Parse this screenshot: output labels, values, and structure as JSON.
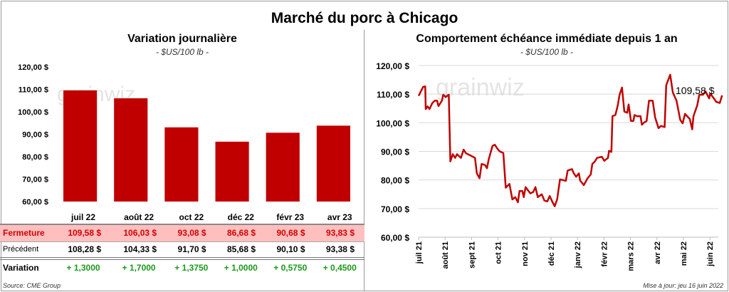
{
  "title": "Marché du porc à Chicago",
  "left": {
    "title": "Variation journalière",
    "unit": "- $US/100 lb -"
  },
  "right": {
    "title": "Comportement  échéance immédiate depuis 1 an",
    "unit": "- $US/100 lb -",
    "last_label": "109,58 $"
  },
  "watermark": "grainwiz",
  "table": {
    "columns": [
      "juil 22",
      "août 22",
      "oct 22",
      "déc 22",
      "févr 23",
      "avr 23"
    ],
    "rows": [
      {
        "label": "Fermeture",
        "values": [
          "109,58  $",
          "106,03  $",
          "93,08  $",
          "86,68  $",
          "90,68  $",
          "93,83  $"
        ]
      },
      {
        "label": "Précédent",
        "values": [
          "108,28  $",
          "104,33  $",
          "91,70  $",
          "85,68  $",
          "90,10  $",
          "93,38  $"
        ]
      },
      {
        "label": "Variation",
        "values": [
          "+ 1,3000",
          "+ 1,7000",
          "+ 1,3750",
          "+ 1,0000",
          "+ 0,5750",
          "+ 0,4500"
        ]
      }
    ]
  },
  "source": "Source: CME Group",
  "updated": "Mise à jour: jeu 16 juin 2022",
  "colors": {
    "bar": "#c00000",
    "line": "#c00000",
    "fermeture_bg": "#ffbfbf",
    "up": "#1a9a1a"
  },
  "chart_data": [
    {
      "type": "bar",
      "title": "Variation journalière",
      "categories": [
        "juil 22",
        "août 22",
        "oct 22",
        "déc 22",
        "févr 23",
        "avr 23"
      ],
      "values": [
        109.58,
        106.03,
        93.08,
        86.68,
        90.68,
        93.83
      ],
      "ylim": [
        60,
        120
      ],
      "yticks": [
        "60,00 $",
        "70,00 $",
        "80,00 $",
        "90,00 $",
        "100,00 $",
        "110,00 $",
        "120,00 $"
      ]
    },
    {
      "type": "line",
      "title": "Comportement  échéance immédiate depuis 1 an",
      "ylim": [
        60,
        120
      ],
      "yticks": [
        "60,00 $",
        "70,00 $",
        "80,00 $",
        "90,00 $",
        "100,00 $",
        "110,00 $",
        "120,00 $"
      ],
      "xticks": [
        "juil 21",
        "août 21",
        "sept 21",
        "oct 21",
        "nov 21",
        "déc 21",
        "janv 22",
        "févr 22",
        "mars 22",
        "avr 22",
        "mai 22",
        "juin 22"
      ],
      "x_unit": "months since juil 21",
      "points": [
        [
          0,
          109.4
        ],
        [
          0.17,
          112.5
        ],
        [
          0.25,
          112.7
        ],
        [
          0.27,
          104.8
        ],
        [
          0.34,
          105.7
        ],
        [
          0.41,
          104.8
        ],
        [
          0.52,
          106.9
        ],
        [
          0.61,
          107.7
        ],
        [
          0.7,
          107.7
        ],
        [
          0.75,
          105.8
        ],
        [
          0.88,
          107.7
        ],
        [
          0.93,
          109.8
        ],
        [
          1.02,
          109
        ],
        [
          1.14,
          109.8
        ],
        [
          1.2,
          86.5
        ],
        [
          1.29,
          89
        ],
        [
          1.38,
          87.7
        ],
        [
          1.45,
          89
        ],
        [
          1.6,
          87.7
        ],
        [
          1.7,
          90.6
        ],
        [
          1.79,
          89.3
        ],
        [
          1.97,
          88.5
        ],
        [
          2.13,
          87.7
        ],
        [
          2.2,
          82.3
        ],
        [
          2.3,
          80.6
        ],
        [
          2.38,
          85.6
        ],
        [
          2.51,
          85.2
        ],
        [
          2.58,
          84.1
        ],
        [
          2.65,
          87.3
        ],
        [
          2.79,
          91.9
        ],
        [
          2.88,
          92.3
        ],
        [
          2.97,
          91
        ],
        [
          3.06,
          90
        ],
        [
          3.2,
          89.4
        ],
        [
          3.29,
          77.3
        ],
        [
          3.43,
          78.6
        ],
        [
          3.54,
          73.2
        ],
        [
          3.65,
          74
        ],
        [
          3.75,
          72.2
        ],
        [
          3.81,
          76.1
        ],
        [
          3.92,
          76.1
        ],
        [
          3.97,
          74
        ],
        [
          4.04,
          77.5
        ],
        [
          4.15,
          76.1
        ],
        [
          4.22,
          75.3
        ],
        [
          4.33,
          75.8
        ],
        [
          4.41,
          77.5
        ],
        [
          4.5,
          74
        ],
        [
          4.65,
          75
        ],
        [
          4.75,
          72.8
        ],
        [
          4.86,
          72.5
        ],
        [
          4.95,
          74.4
        ],
        [
          5.06,
          72.2
        ],
        [
          5.14,
          70.8
        ],
        [
          5.23,
          73.2
        ],
        [
          5.34,
          80.2
        ],
        [
          5.43,
          80
        ],
        [
          5.56,
          79.7
        ],
        [
          5.63,
          83.3
        ],
        [
          5.79,
          83.8
        ],
        [
          5.86,
          82.3
        ],
        [
          5.95,
          81.1
        ],
        [
          6.05,
          82.3
        ],
        [
          6.1,
          79.8
        ],
        [
          6.24,
          78.2
        ],
        [
          6.38,
          80.6
        ],
        [
          6.5,
          81.9
        ],
        [
          6.56,
          85.6
        ],
        [
          6.65,
          86.4
        ],
        [
          6.74,
          87.7
        ],
        [
          6.92,
          88.1
        ],
        [
          7.01,
          86.7
        ],
        [
          7.15,
          87.7
        ],
        [
          7.19,
          90.2
        ],
        [
          7.28,
          89.8
        ],
        [
          7.32,
          102.3
        ],
        [
          7.43,
          102.7
        ],
        [
          7.52,
          106
        ],
        [
          7.59,
          109.8
        ],
        [
          7.68,
          112.3
        ],
        [
          7.77,
          103.9
        ],
        [
          7.88,
          103.5
        ],
        [
          7.93,
          106.4
        ],
        [
          8.02,
          100.6
        ],
        [
          8.11,
          100.6
        ],
        [
          8.15,
          102.7
        ],
        [
          8.25,
          102.3
        ],
        [
          8.38,
          102.3
        ],
        [
          8.43,
          99.3
        ],
        [
          8.52,
          100.1
        ],
        [
          8.61,
          100.6
        ],
        [
          8.7,
          107.7
        ],
        [
          8.84,
          107.7
        ],
        [
          8.93,
          101.9
        ],
        [
          9.06,
          98.1
        ],
        [
          9.15,
          98.9
        ],
        [
          9.29,
          98.5
        ],
        [
          9.35,
          113.1
        ],
        [
          9.5,
          116.8
        ],
        [
          9.6,
          110.6
        ],
        [
          9.74,
          107.7
        ],
        [
          9.88,
          101
        ],
        [
          9.97,
          99.8
        ],
        [
          10.06,
          103.1
        ],
        [
          10.24,
          101.3
        ],
        [
          10.33,
          97.7
        ],
        [
          10.38,
          102.3
        ],
        [
          10.52,
          106
        ],
        [
          10.6,
          109.8
        ],
        [
          10.74,
          109.8
        ],
        [
          10.83,
          111
        ],
        [
          10.97,
          108.5
        ],
        [
          11.01,
          110.2
        ],
        [
          11.15,
          108.5
        ],
        [
          11.24,
          107.3
        ],
        [
          11.37,
          106.9
        ],
        [
          11.46,
          109.58
        ]
      ]
    }
  ]
}
